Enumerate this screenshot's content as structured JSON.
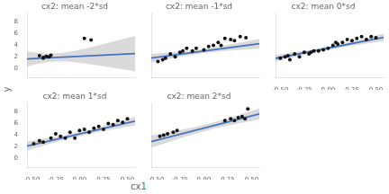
{
  "chart_data": [
    {
      "type": "scatter",
      "title": "cx2: mean -2*sd",
      "ylabel": "y",
      "grid": false,
      "tick_labels": "y",
      "color": "#111111",
      "x": [
        -0.42,
        -0.38,
        -0.35,
        -0.32,
        0.05,
        0.12,
        -0.38,
        -0.3
      ],
      "values": [
        2.2,
        1.8,
        2.1,
        2.0,
        5.2,
        4.9,
        1.9,
        2.3
      ],
      "line": {
        "x": [
          -0.55,
          0.58
        ],
        "values": [
          1.66,
          2.564
        ],
        "color": "#4472C4"
      },
      "band": {
        "x": [
          -0.55,
          -0.45,
          -0.35,
          -0.25,
          -0.15,
          -0.05,
          0.05,
          0.15,
          0.25,
          0.35,
          0.45,
          0.58
        ],
        "lower": [
          0.37,
          0.73,
          1.03,
          1.2,
          1.2,
          1.07,
          0.87,
          0.64,
          0.39,
          0.13,
          -0.13,
          -0.47
        ],
        "upper": [
          2.95,
          2.75,
          2.61,
          2.6,
          2.76,
          3.05,
          3.41,
          3.8,
          4.21,
          4.63,
          5.05,
          5.6
        ],
        "color": "#BBBBBB"
      },
      "xlim": [
        -0.55,
        0.58
      ],
      "xticks": [
        {
          "value": -0.5,
          "label": "-0.50"
        },
        {
          "value": -0.25,
          "label": "-0.25"
        },
        {
          "value": 0,
          "label": "0.00"
        },
        {
          "value": 0.25,
          "label": "0.25"
        },
        {
          "value": 0.5,
          "label": "0.50"
        }
      ],
      "ylim": [
        -1.5,
        9.5
      ],
      "yticks": [
        0,
        2,
        4,
        6,
        8
      ]
    },
    {
      "type": "scatter",
      "title": "cx2: mean -1*sd",
      "grid": false,
      "tick_labels": false,
      "color": "#111111",
      "x": [
        -0.48,
        -0.43,
        -0.4,
        -0.35,
        -0.3,
        -0.25,
        -0.22,
        -0.18,
        -0.12,
        -0.08,
        0.0,
        0.05,
        0.1,
        0.15,
        0.18,
        0.22,
        0.28,
        0.32,
        0.38,
        0.44
      ],
      "values": [
        1.2,
        1.5,
        1.8,
        2.5,
        2.0,
        2.8,
        3.0,
        3.5,
        3.0,
        3.5,
        3.2,
        3.8,
        4.0,
        4.5,
        4.0,
        5.2,
        5.0,
        4.8,
        5.5,
        5.3
      ],
      "line": {
        "x": [
          -0.55,
          0.58
        ],
        "values": [
          1.79,
          4.276
        ],
        "color": "#4472C4"
      },
      "band": {
        "x": [
          -0.55,
          -0.45,
          -0.35,
          -0.25,
          -0.15,
          -0.05,
          0.05,
          0.15,
          0.25,
          0.35,
          0.45,
          0.58
        ],
        "lower": [
          1.06,
          1.38,
          1.7,
          2.01,
          2.29,
          2.54,
          2.74,
          2.91,
          3.05,
          3.17,
          3.29,
          3.43
        ],
        "upper": [
          2.52,
          2.64,
          2.76,
          2.89,
          3.05,
          3.24,
          3.48,
          3.75,
          4.05,
          4.37,
          4.69,
          5.12
        ],
        "color": "#BBBBBB"
      },
      "xlim": [
        -0.55,
        0.58
      ],
      "xticks": [
        {
          "value": -0.5,
          "label": "-0.50"
        },
        {
          "value": -0.25,
          "label": "-0.25"
        },
        {
          "value": 0,
          "label": "0.00"
        },
        {
          "value": 0.25,
          "label": "0.25"
        },
        {
          "value": 0.5,
          "label": "0.50"
        }
      ],
      "ylim": [
        -1.5,
        9.5
      ],
      "yticks": [
        0,
        2,
        4,
        6,
        8
      ]
    },
    {
      "type": "scatter",
      "title": "cx2: mean 0*sd",
      "grid": false,
      "tick_labels": "x",
      "color": "#111111",
      "x": [
        -0.5,
        -0.45,
        -0.4,
        -0.35,
        -0.3,
        -0.25,
        -0.2,
        -0.15,
        -0.1,
        -0.05,
        0.0,
        0.05,
        0.1,
        0.15,
        0.2,
        0.25,
        0.3,
        0.35,
        0.4,
        0.45,
        0.5,
        -0.42,
        -0.18,
        0.08
      ],
      "values": [
        1.8,
        2.0,
        1.5,
        2.5,
        2.0,
        2.8,
        2.5,
        3.0,
        3.0,
        3.2,
        3.5,
        4.0,
        4.2,
        4.5,
        5.0,
        4.8,
        5.2,
        5.5,
        5.0,
        5.5,
        5.3,
        2.2,
        2.8,
        4.5
      ],
      "line": {
        "x": [
          -0.55,
          0.58
        ],
        "values": [
          1.74,
          5.356
        ],
        "color": "#4472C4"
      },
      "band": {
        "x": [
          -0.55,
          -0.45,
          -0.35,
          -0.25,
          -0.15,
          -0.05,
          0.05,
          0.15,
          0.25,
          0.35,
          0.45,
          0.58
        ],
        "lower": [
          1.17,
          1.57,
          1.96,
          2.35,
          2.72,
          3.06,
          3.37,
          3.66,
          3.92,
          4.17,
          4.42,
          4.72
        ],
        "upper": [
          2.31,
          2.55,
          2.8,
          3.05,
          3.32,
          3.62,
          3.95,
          4.3,
          4.68,
          5.07,
          5.46,
          5.99
        ],
        "color": "#BBBBBB"
      },
      "xlim": [
        -0.55,
        0.58
      ],
      "xticks": [
        {
          "value": -0.5,
          "label": "-0.50"
        },
        {
          "value": -0.25,
          "label": "-0.25"
        },
        {
          "value": 0,
          "label": "0.00"
        },
        {
          "value": 0.25,
          "label": "0.25"
        },
        {
          "value": 0.5,
          "label": "0.50"
        }
      ],
      "ylim": [
        -1.5,
        9.5
      ],
      "yticks": [
        0,
        2,
        4,
        6,
        8
      ]
    },
    {
      "type": "scatter",
      "title": "cx2: mean 1*sd",
      "xlabel": "cx1",
      "grid": false,
      "color": "#111111",
      "x": [
        -0.48,
        -0.42,
        -0.38,
        -0.3,
        -0.25,
        -0.2,
        -0.15,
        -0.1,
        -0.05,
        0.0,
        0.05,
        0.1,
        0.15,
        0.2,
        0.25,
        0.3,
        0.35,
        0.4,
        0.45,
        0.5
      ],
      "values": [
        2.5,
        3.0,
        2.8,
        3.5,
        4.2,
        3.8,
        3.5,
        4.5,
        3.5,
        4.8,
        5.0,
        4.5,
        5.2,
        5.5,
        5.0,
        6.0,
        5.8,
        6.5,
        6.2,
        6.8
      ],
      "line": {
        "x": [
          -0.55,
          0.58
        ],
        "values": [
          2.11,
          6.404
        ],
        "color": "#4472C4"
      },
      "band": {
        "x": [
          -0.55,
          -0.45,
          -0.35,
          -0.25,
          -0.15,
          -0.05,
          0.05,
          0.15,
          0.25,
          0.35,
          0.45,
          0.58
        ],
        "lower": [
          1.35,
          1.83,
          2.31,
          2.77,
          3.23,
          3.65,
          4.04,
          4.39,
          4.71,
          5.0,
          5.29,
          5.65
        ],
        "upper": [
          2.87,
          3.15,
          3.43,
          3.73,
          4.03,
          4.37,
          4.74,
          5.15,
          5.59,
          6.06,
          6.53,
          7.16
        ],
        "color": "#BBBBBB"
      },
      "xlim": [
        -0.55,
        0.58
      ],
      "xticks": [
        {
          "value": -0.5,
          "label": "-0.50"
        },
        {
          "value": -0.25,
          "label": "-0.25"
        },
        {
          "value": 0,
          "label": "0.00"
        },
        {
          "value": 0.25,
          "label": "0.25"
        },
        {
          "value": 0.5,
          "label": "0.50"
        }
      ],
      "ylim": [
        -1.5,
        9.5
      ],
      "yticks": [
        0,
        2,
        4,
        6,
        8
      ]
    },
    {
      "type": "scatter",
      "title": "cx2: mean 2*sd",
      "grid": false,
      "tick_labels": "x",
      "color": "#111111",
      "x": [
        -0.46,
        -0.42,
        -0.38,
        -0.32,
        -0.28,
        0.22,
        0.28,
        0.32,
        0.36,
        0.4,
        0.43,
        0.46
      ],
      "values": [
        3.8,
        4.0,
        4.2,
        4.5,
        4.8,
        6.5,
        6.8,
        6.5,
        7.0,
        7.2,
        6.8,
        8.5
      ],
      "line": {
        "x": [
          -0.55,
          0.58
        ],
        "values": [
          2.89,
          7.636
        ],
        "color": "#4472C4"
      },
      "band": {
        "x": [
          -0.55,
          -0.45,
          -0.35,
          -0.25,
          -0.15,
          -0.05,
          0.05,
          0.15,
          0.25,
          0.35,
          0.45,
          0.58
        ],
        "lower": [
          1.83,
          2.38,
          2.91,
          3.44,
          3.94,
          4.42,
          4.86,
          5.26,
          5.62,
          5.96,
          6.27,
          6.67
        ],
        "upper": [
          3.95,
          4.24,
          4.55,
          4.86,
          5.2,
          5.56,
          5.96,
          6.4,
          6.88,
          7.38,
          7.91,
          8.6
        ],
        "color": "#BBBBBB"
      },
      "xlim": [
        -0.55,
        0.58
      ],
      "xticks": [
        {
          "value": -0.5,
          "label": "-0.50"
        },
        {
          "value": -0.25,
          "label": "-0.25"
        },
        {
          "value": 0,
          "label": "0.00"
        },
        {
          "value": 0.25,
          "label": "0.25"
        },
        {
          "value": 0.5,
          "label": "0.50"
        }
      ],
      "ylim": [
        -1.5,
        9.5
      ],
      "yticks": [
        0,
        2,
        4,
        6,
        8
      ]
    }
  ]
}
